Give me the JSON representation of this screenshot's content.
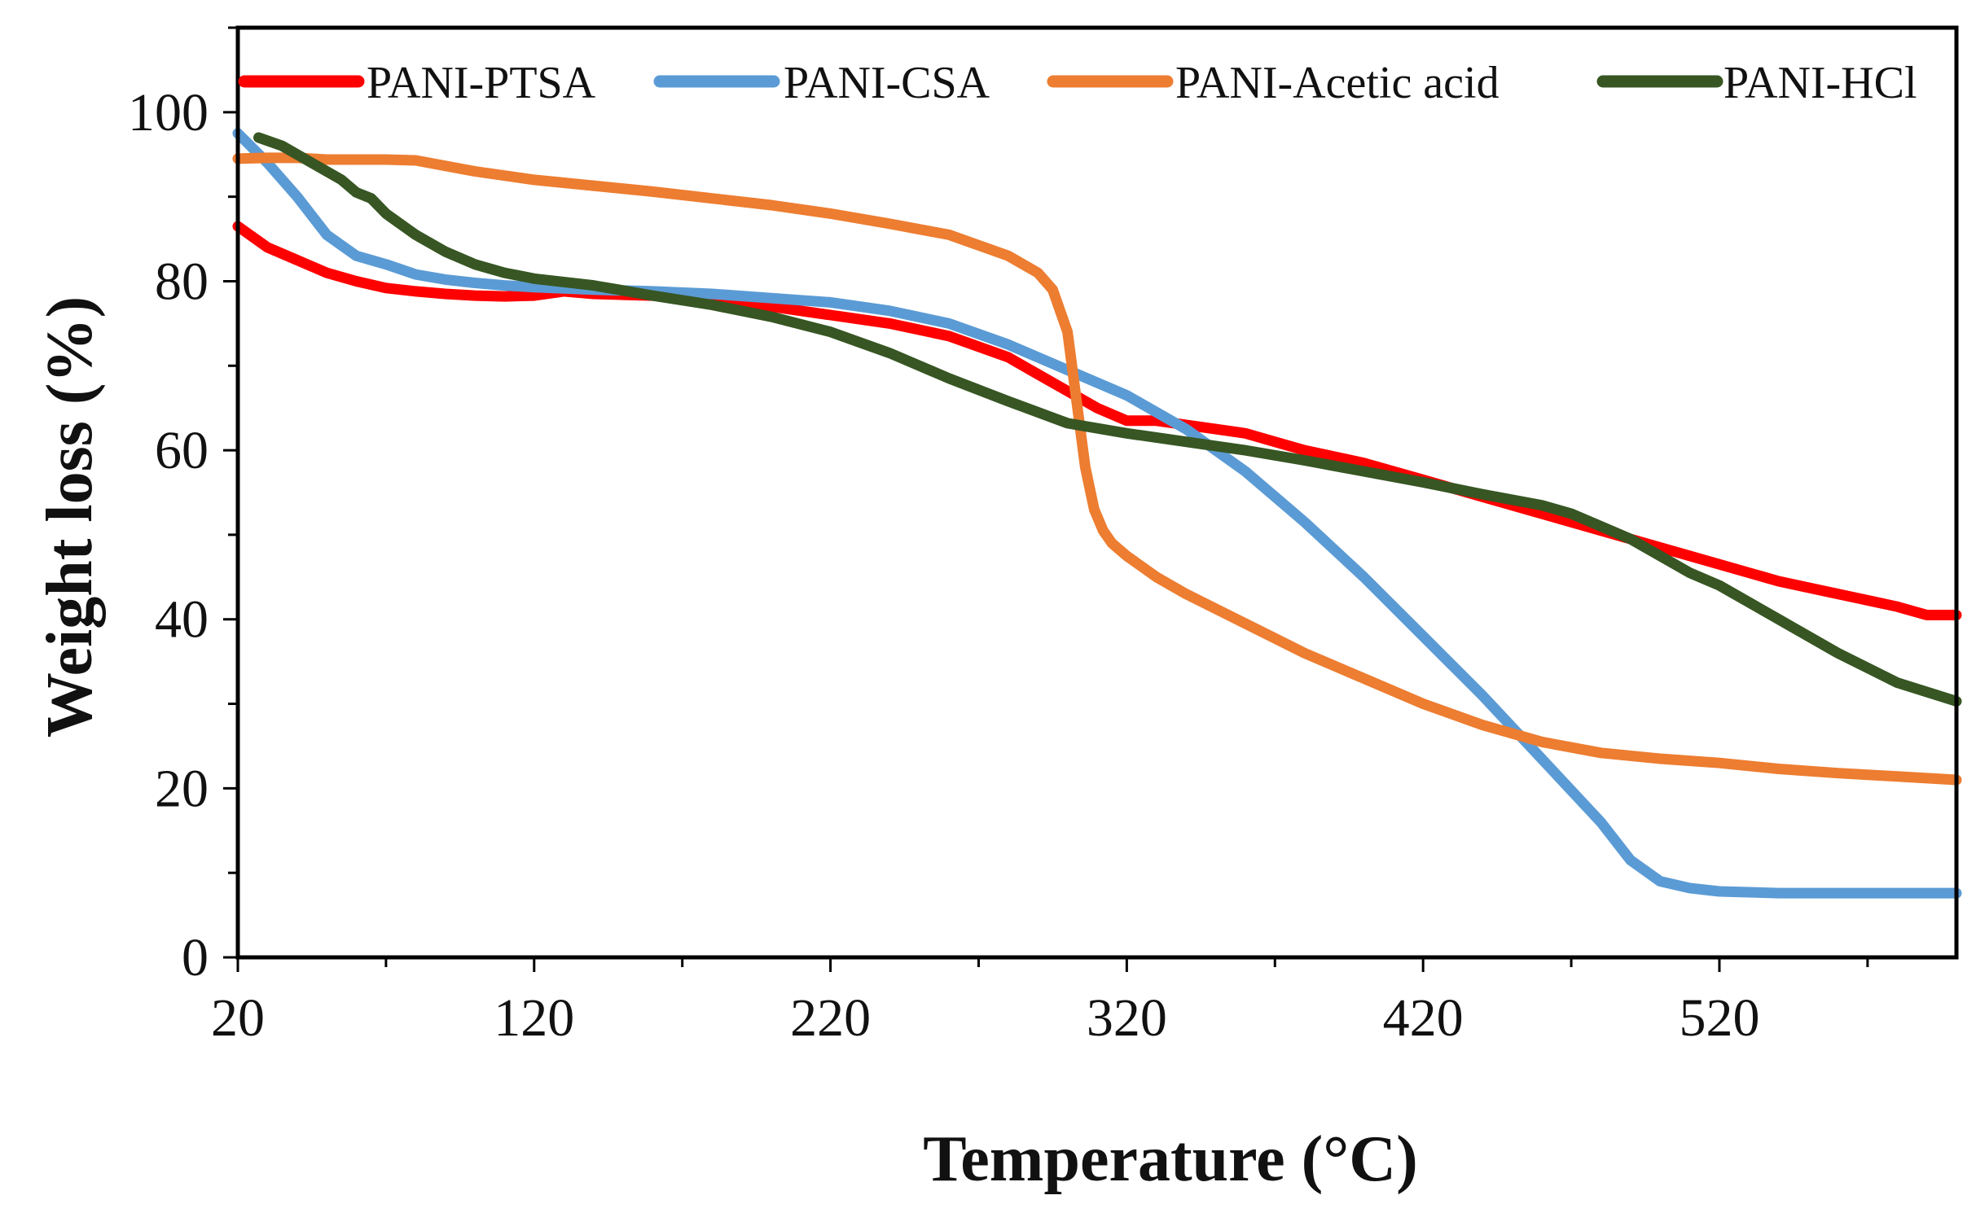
{
  "chart_data": {
    "type": "line",
    "title": "",
    "xlabel": "Temperature (°C)",
    "ylabel": "Weight loss (%)",
    "xlim": [
      20,
      600
    ],
    "ylim": [
      0,
      110
    ],
    "xticks": [
      20,
      120,
      220,
      320,
      420,
      520
    ],
    "yticks": [
      0,
      20,
      40,
      60,
      80,
      100
    ],
    "grid": false,
    "legend_position": "top",
    "series": [
      {
        "name": "PANI-PTSA",
        "color": "#ff0000",
        "x": [
          20,
          30,
          40,
          50,
          60,
          70,
          80,
          90,
          100,
          110,
          120,
          130,
          140,
          150,
          160,
          180,
          200,
          220,
          240,
          260,
          280,
          290,
          300,
          310,
          320,
          330,
          340,
          350,
          360,
          370,
          380,
          400,
          420,
          440,
          460,
          480,
          500,
          520,
          540,
          560,
          580,
          590,
          600
        ],
        "y": [
          86.5,
          84,
          82.5,
          81,
          80,
          79.2,
          78.8,
          78.5,
          78.3,
          78.2,
          78.3,
          78.8,
          78.5,
          78.4,
          78.3,
          77.8,
          77,
          76,
          75,
          73.5,
          71,
          69,
          67,
          65,
          63.5,
          63.5,
          63,
          62.5,
          62,
          61,
          60,
          58.5,
          56.5,
          54.5,
          52.5,
          50.5,
          48.5,
          46.5,
          44.5,
          43,
          41.5,
          40.5,
          40.5
        ]
      },
      {
        "name": "PANI-CSA",
        "color": "#5b9bd5",
        "x": [
          20,
          30,
          40,
          50,
          60,
          70,
          80,
          90,
          100,
          110,
          120,
          140,
          160,
          180,
          200,
          220,
          240,
          260,
          280,
          300,
          320,
          340,
          360,
          380,
          400,
          420,
          440,
          460,
          480,
          490,
          500,
          510,
          520,
          540,
          560,
          580,
          600
        ],
        "y": [
          97.5,
          94,
          90,
          85.5,
          83,
          82,
          80.8,
          80.2,
          79.8,
          79.5,
          79.3,
          79,
          78.8,
          78.5,
          78,
          77.5,
          76.5,
          75,
          72.5,
          69.5,
          66.5,
          62.5,
          57.5,
          51.5,
          45,
          38,
          31,
          23.5,
          16,
          11.5,
          9,
          8.2,
          7.8,
          7.6,
          7.6,
          7.6,
          7.6
        ]
      },
      {
        "name": "PANI-Acetic acid",
        "color": "#ed7d31",
        "x": [
          20,
          30,
          40,
          50,
          60,
          70,
          80,
          100,
          120,
          140,
          160,
          180,
          200,
          220,
          240,
          260,
          280,
          290,
          295,
          300,
          303,
          306,
          309,
          312,
          315,
          320,
          330,
          340,
          360,
          380,
          400,
          420,
          440,
          460,
          480,
          500,
          520,
          540,
          560,
          580,
          600
        ],
        "y": [
          94.5,
          94.6,
          94.6,
          94.4,
          94.4,
          94.4,
          94.3,
          93,
          92,
          91.3,
          90.6,
          89.8,
          89,
          88,
          86.8,
          85.5,
          83,
          81,
          79,
          74,
          66,
          58,
          53,
          50.5,
          49,
          47.5,
          45,
          43,
          39.5,
          36,
          33,
          30,
          27.5,
          25.5,
          24.2,
          23.5,
          23,
          22.3,
          21.8,
          21.4,
          21
        ]
      },
      {
        "name": "PANI-HCl",
        "color": "#375623",
        "x": [
          27,
          35,
          45,
          55,
          60,
          65,
          70,
          80,
          90,
          100,
          110,
          120,
          140,
          160,
          180,
          200,
          220,
          240,
          260,
          280,
          300,
          320,
          340,
          360,
          380,
          400,
          420,
          440,
          460,
          470,
          480,
          490,
          500,
          510,
          520,
          540,
          560,
          580,
          600
        ],
        "y": [
          97,
          96,
          94,
          92,
          90.5,
          89.8,
          88,
          85.5,
          83.5,
          82,
          81,
          80.3,
          79.5,
          78.3,
          77.2,
          75.8,
          74,
          71.5,
          68.5,
          65.8,
          63.2,
          62,
          61,
          60,
          58.8,
          57.5,
          56.2,
          54.8,
          53.5,
          52.5,
          51,
          49.5,
          47.5,
          45.5,
          44,
          40,
          36,
          32.5,
          30.3
        ]
      }
    ]
  }
}
